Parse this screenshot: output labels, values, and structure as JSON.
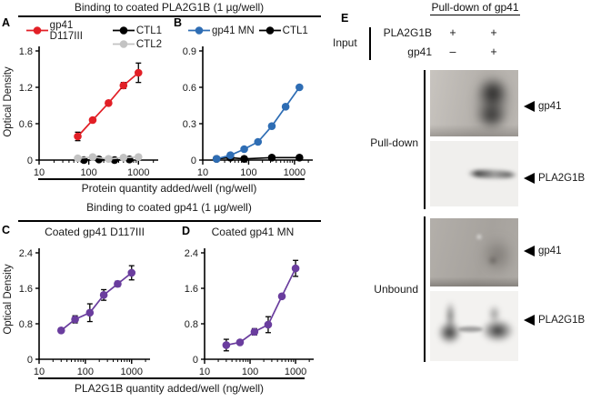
{
  "headers": {
    "binding_pla2g1b": "Binding to coated PLA2G1B (1 µg/well)",
    "binding_gp41": "Binding to coated gp41 (1 µg/well)",
    "pulldown": "Pull-down of gp41"
  },
  "panels": {
    "a": "A",
    "b": "B",
    "c": "C",
    "d": "D",
    "e": "E"
  },
  "axis_labels": {
    "od_a": "Optical Density",
    "od_c": "Optical Density",
    "protein_x": "Protein quantity added/well (ng/well)",
    "pla2g1b_x": "PLA2G1B quantity added/well (ng/well)"
  },
  "panelC_title": "Coated gp41 D117III",
  "panelD_title": "Coated gp41 MN",
  "panelE": {
    "input_label": "Input",
    "rows": [
      {
        "name": "PLA2G1B",
        "lanes": [
          "+",
          "+"
        ]
      },
      {
        "name": "gp41",
        "lanes": [
          "–",
          "+"
        ]
      }
    ],
    "sections": [
      {
        "label": "Pull-down"
      },
      {
        "label": "Unbound"
      }
    ],
    "arrows": [
      {
        "label": "gp41"
      },
      {
        "label": "PLA2G1B"
      },
      {
        "label": "gp41"
      },
      {
        "label": "PLA2G1B"
      }
    ]
  },
  "chart_data": [
    {
      "type": "line",
      "panel": "A",
      "xscale": "log",
      "xlim": [
        10,
        2500
      ],
      "ylim": [
        0,
        1.8
      ],
      "xticks": [
        10,
        100,
        1000
      ],
      "yticks": [
        0,
        0.6,
        1.2,
        1.8
      ],
      "ytick_labels": [
        "0",
        "0.6",
        "1.2",
        "1.8"
      ],
      "xlabel": "Protein quantity added/well (ng/well)",
      "ylabel": "Optical Density",
      "series": [
        {
          "name": "CTL1",
          "color": "#000000",
          "x": [
            80,
            160,
            330,
            660
          ],
          "y": [
            0.0,
            0.01,
            0.0,
            0.01
          ],
          "err": null
        },
        {
          "name": "CTL2",
          "color": "#c3c3c3",
          "x": [
            60,
            120,
            250,
            500,
            1000
          ],
          "y": [
            0.03,
            0.05,
            0.02,
            0.04,
            0.05
          ],
          "err": null
        },
        {
          "name": "gp41 D117III",
          "color": "#e21f26",
          "x": [
            60,
            120,
            250,
            500,
            1000
          ],
          "y": [
            0.39,
            0.66,
            0.94,
            1.23,
            1.44
          ],
          "err": [
            0.07,
            0,
            0,
            0.05,
            0.16
          ]
        }
      ]
    },
    {
      "type": "line",
      "panel": "B",
      "xscale": "log",
      "xlim": [
        10,
        2500
      ],
      "ylim": [
        0,
        0.9
      ],
      "xticks": [
        10,
        100,
        1000
      ],
      "yticks": [
        0,
        0.3,
        0.6,
        0.9
      ],
      "ytick_labels": [
        "0",
        "0.3",
        "0.6",
        "0.9"
      ],
      "xlabel": "Protein quantity added/well (ng/well)",
      "ylabel": "",
      "series": [
        {
          "name": "CTL1",
          "color": "#000000",
          "x": [
            20,
            40,
            80,
            320,
            1280
          ],
          "y": [
            0.01,
            0.02,
            0.01,
            0.02,
            0.02
          ],
          "err": null
        },
        {
          "name": "gp41 MN",
          "color": "#2e6db4",
          "x": [
            20,
            40,
            80,
            160,
            320,
            640,
            1280
          ],
          "y": [
            0.01,
            0.04,
            0.09,
            0.15,
            0.28,
            0.44,
            0.6
          ],
          "err": null
        }
      ]
    },
    {
      "type": "line",
      "panel": "C",
      "title": "Coated gp41 D117III",
      "xscale": "log",
      "xlim": [
        10,
        2500
      ],
      "ylim": [
        0,
        2.4
      ],
      "xticks": [
        10,
        100,
        1000
      ],
      "yticks": [
        0,
        0.8,
        1.6,
        2.4
      ],
      "ytick_labels": [
        "0",
        "0.8",
        "1.6",
        "2.4"
      ],
      "xlabel": "PLA2G1B quantity added/well (ng/well)",
      "ylabel": "Optical Density",
      "series": [
        {
          "name": "PLA2G1B",
          "color": "#6a3d9e",
          "x": [
            30,
            60,
            125,
            250,
            500,
            1000
          ],
          "y": [
            0.65,
            0.9,
            1.05,
            1.45,
            1.7,
            1.95
          ],
          "err": [
            0.05,
            0.08,
            0.2,
            0.12,
            0.06,
            0.16
          ]
        }
      ]
    },
    {
      "type": "line",
      "panel": "D",
      "title": "Coated gp41 MN",
      "xscale": "log",
      "xlim": [
        10,
        2500
      ],
      "ylim": [
        0,
        2.4
      ],
      "xticks": [
        10,
        100,
        1000
      ],
      "yticks": [
        0,
        0.8,
        1.6,
        2.4
      ],
      "ytick_labels": [
        "0",
        "0.8",
        "1.6",
        "2.4"
      ],
      "xlabel": "PLA2G1B quantity added/well (ng/well)",
      "ylabel": "Optical Density",
      "series": [
        {
          "name": "PLA2G1B",
          "color": "#6a3d9e",
          "x": [
            30,
            60,
            125,
            250,
            500,
            1000
          ],
          "y": [
            0.32,
            0.38,
            0.62,
            0.78,
            1.42,
            2.05
          ],
          "err": [
            0.13,
            0.05,
            0.07,
            0.18,
            0.05,
            0.18
          ]
        }
      ]
    }
  ]
}
